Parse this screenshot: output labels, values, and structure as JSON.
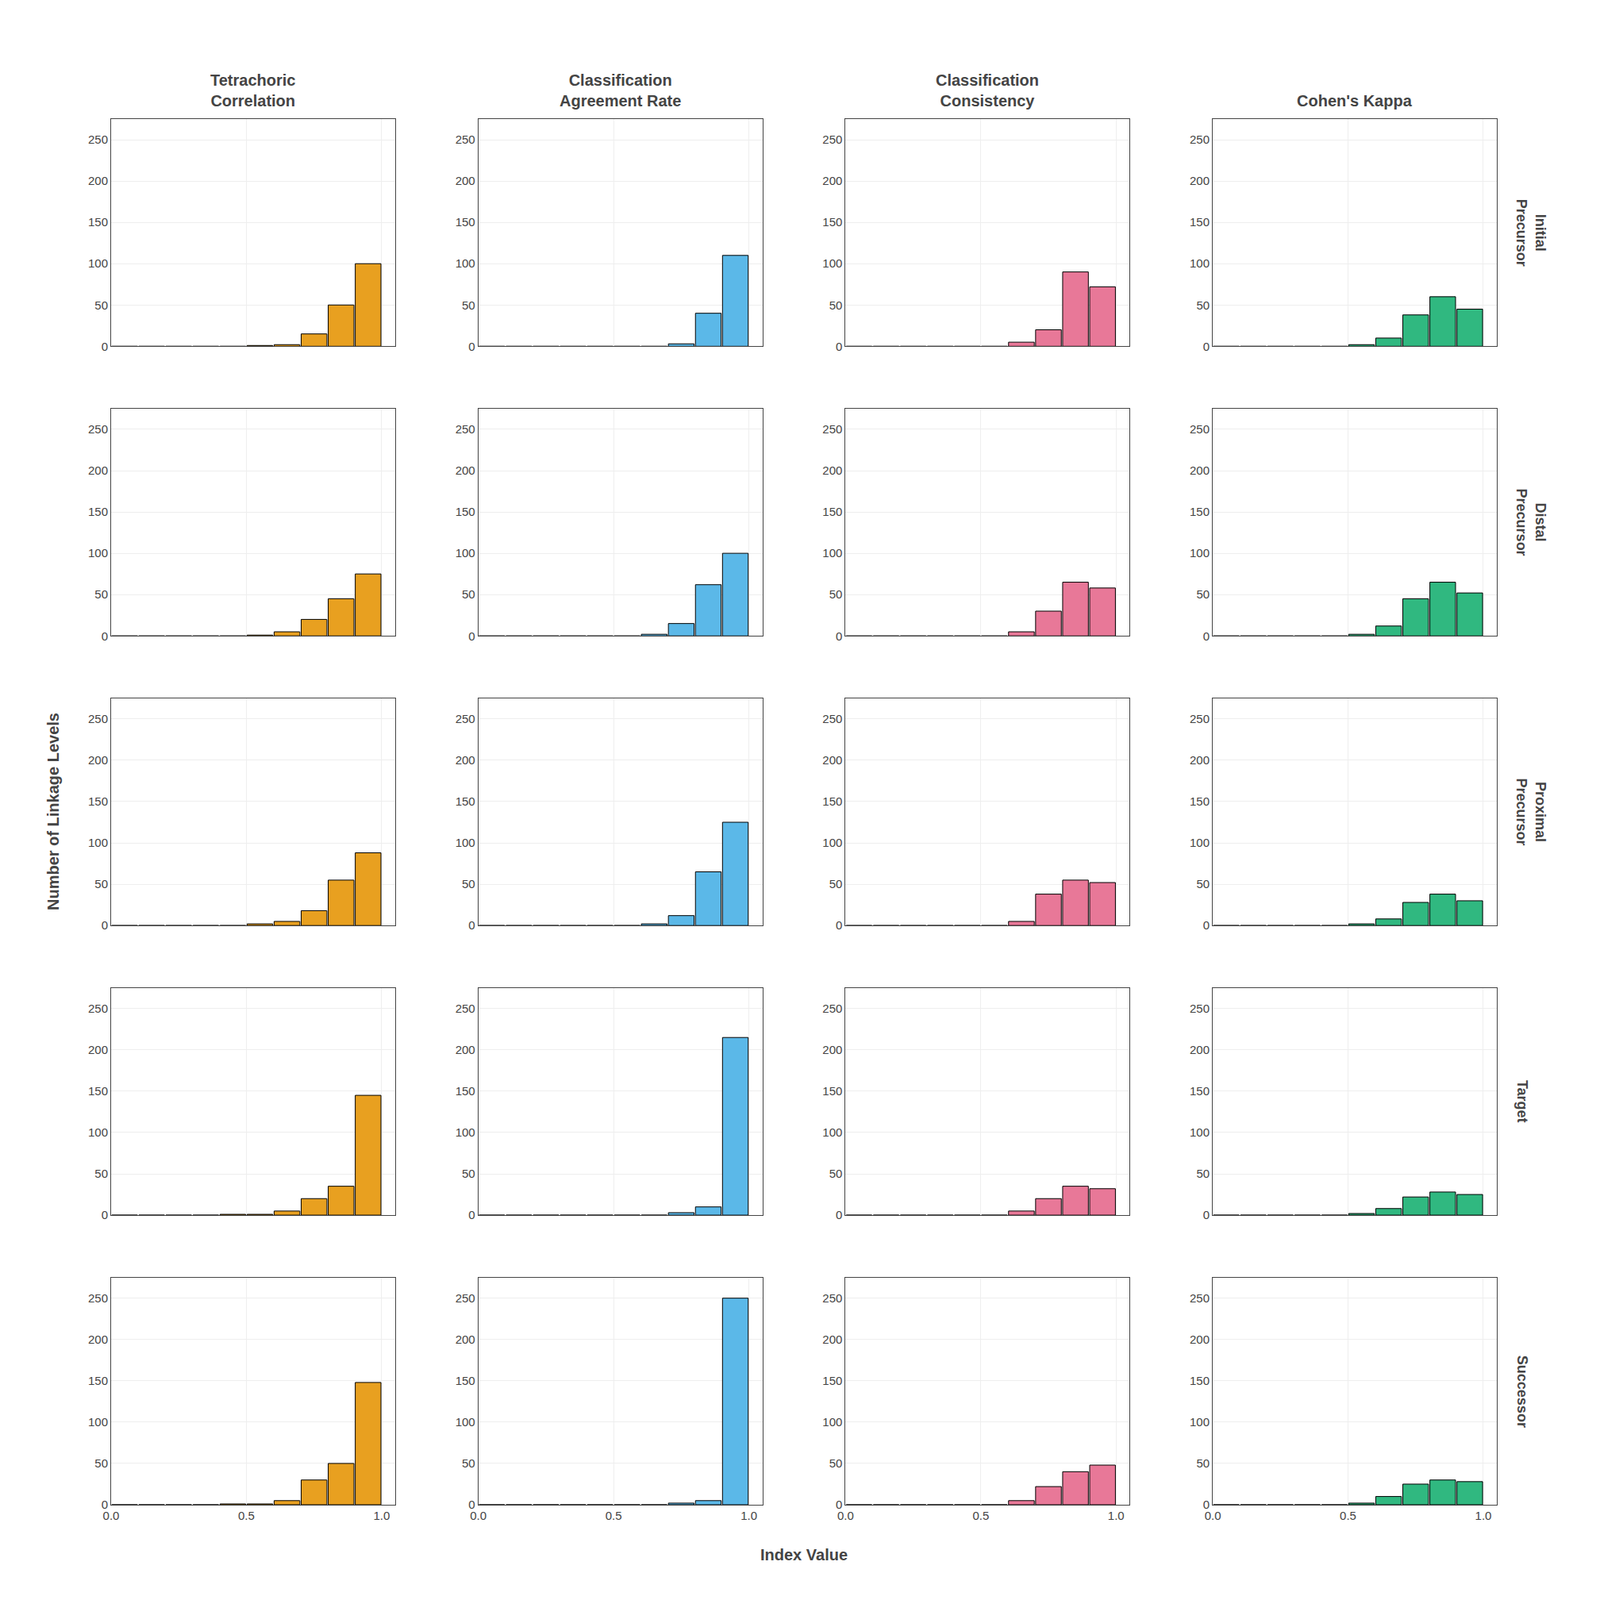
{
  "xlabel": "Index Value",
  "ylabel": "Number of Linkage Levels",
  "chart_data": [
    {
      "type": "histogram",
      "title": "Tetrachoric\nCorrelation",
      "bins": [
        0.0,
        0.1,
        0.2,
        0.3,
        0.4,
        0.5,
        0.6,
        0.7,
        0.8,
        0.9,
        1.0
      ],
      "values": [
        0,
        0,
        0,
        0,
        0,
        1,
        2,
        15,
        50,
        100
      ],
      "color": "#E8A020",
      "xlim": [
        0.0,
        1.05
      ],
      "ylim": [
        0,
        275
      ],
      "xticks": [
        {
          "value": 0.0,
          "label": "0.0"
        },
        0.5,
        {
          "value": 1.0,
          "label": "1.0"
        }
      ],
      "yticks": [
        0,
        50,
        100,
        150,
        200,
        250
      ],
      "grid": true,
      "tick_labels": "y"
    },
    {
      "type": "histogram",
      "title": "Classification\nAgreement Rate",
      "bins": [
        0.0,
        0.1,
        0.2,
        0.3,
        0.4,
        0.5,
        0.6,
        0.7,
        0.8,
        0.9,
        1.0
      ],
      "values": [
        0,
        0,
        0,
        0,
        0,
        0,
        0,
        3,
        40,
        110
      ],
      "color": "#5BB8E8",
      "xlim": [
        0.0,
        1.05
      ],
      "ylim": [
        0,
        275
      ],
      "xticks": [
        {
          "value": 0.0,
          "label": "0.0"
        },
        0.5,
        {
          "value": 1.0,
          "label": "1.0"
        }
      ],
      "yticks": [
        0,
        50,
        100,
        150,
        200,
        250
      ],
      "grid": true,
      "tick_labels": "y"
    },
    {
      "type": "histogram",
      "title": "Classification\nConsistency",
      "bins": [
        0.0,
        0.1,
        0.2,
        0.3,
        0.4,
        0.5,
        0.6,
        0.7,
        0.8,
        0.9,
        1.0
      ],
      "values": [
        0,
        0,
        0,
        0,
        0,
        0,
        5,
        20,
        90,
        72
      ],
      "color": "#E87898",
      "xlim": [
        0.0,
        1.05
      ],
      "ylim": [
        0,
        275
      ],
      "xticks": [
        {
          "value": 0.0,
          "label": "0.0"
        },
        0.5,
        {
          "value": 1.0,
          "label": "1.0"
        }
      ],
      "yticks": [
        0,
        50,
        100,
        150,
        200,
        250
      ],
      "grid": true,
      "tick_labels": "y"
    },
    {
      "type": "histogram",
      "title": "Cohen's Kappa",
      "annotations": [
        "Initial\nPrecursor"
      ],
      "bins": [
        0.0,
        0.1,
        0.2,
        0.3,
        0.4,
        0.5,
        0.6,
        0.7,
        0.8,
        0.9,
        1.0
      ],
      "values": [
        0,
        0,
        0,
        0,
        0,
        2,
        10,
        38,
        60,
        45
      ],
      "color": "#30B880",
      "xlim": [
        0.0,
        1.05
      ],
      "ylim": [
        0,
        275
      ],
      "xticks": [
        {
          "value": 0.0,
          "label": "0.0"
        },
        0.5,
        {
          "value": 1.0,
          "label": "1.0"
        }
      ],
      "yticks": [
        0,
        50,
        100,
        150,
        200,
        250
      ],
      "grid": true,
      "tick_labels": "y"
    },
    {
      "type": "histogram",
      "bins": [
        0.0,
        0.1,
        0.2,
        0.3,
        0.4,
        0.5,
        0.6,
        0.7,
        0.8,
        0.9,
        1.0
      ],
      "values": [
        0,
        0,
        0,
        0,
        0,
        1,
        5,
        20,
        45,
        75
      ],
      "color": "#E8A020",
      "xlim": [
        0.0,
        1.05
      ],
      "ylim": [
        0,
        275
      ],
      "xticks": [
        {
          "value": 0.0,
          "label": "0.0"
        },
        0.5,
        {
          "value": 1.0,
          "label": "1.0"
        }
      ],
      "yticks": [
        0,
        50,
        100,
        150,
        200,
        250
      ],
      "grid": true,
      "tick_labels": "y"
    },
    {
      "type": "histogram",
      "bins": [
        0.0,
        0.1,
        0.2,
        0.3,
        0.4,
        0.5,
        0.6,
        0.7,
        0.8,
        0.9,
        1.0
      ],
      "values": [
        0,
        0,
        0,
        0,
        0,
        0,
        2,
        15,
        62,
        100
      ],
      "color": "#5BB8E8",
      "xlim": [
        0.0,
        1.05
      ],
      "ylim": [
        0,
        275
      ],
      "xticks": [
        {
          "value": 0.0,
          "label": "0.0"
        },
        0.5,
        {
          "value": 1.0,
          "label": "1.0"
        }
      ],
      "yticks": [
        0,
        50,
        100,
        150,
        200,
        250
      ],
      "grid": true,
      "tick_labels": "y"
    },
    {
      "type": "histogram",
      "bins": [
        0.0,
        0.1,
        0.2,
        0.3,
        0.4,
        0.5,
        0.6,
        0.7,
        0.8,
        0.9,
        1.0
      ],
      "values": [
        0,
        0,
        0,
        0,
        0,
        0,
        5,
        30,
        65,
        58
      ],
      "color": "#E87898",
      "xlim": [
        0.0,
        1.05
      ],
      "ylim": [
        0,
        275
      ],
      "xticks": [
        {
          "value": 0.0,
          "label": "0.0"
        },
        0.5,
        {
          "value": 1.0,
          "label": "1.0"
        }
      ],
      "yticks": [
        0,
        50,
        100,
        150,
        200,
        250
      ],
      "grid": true,
      "tick_labels": "y"
    },
    {
      "type": "histogram",
      "annotations": [
        "Distal\nPrecursor"
      ],
      "bins": [
        0.0,
        0.1,
        0.2,
        0.3,
        0.4,
        0.5,
        0.6,
        0.7,
        0.8,
        0.9,
        1.0
      ],
      "values": [
        0,
        0,
        0,
        0,
        0,
        2,
        12,
        45,
        65,
        52
      ],
      "color": "#30B880",
      "xlim": [
        0.0,
        1.05
      ],
      "ylim": [
        0,
        275
      ],
      "xticks": [
        {
          "value": 0.0,
          "label": "0.0"
        },
        0.5,
        {
          "value": 1.0,
          "label": "1.0"
        }
      ],
      "yticks": [
        0,
        50,
        100,
        150,
        200,
        250
      ],
      "grid": true,
      "tick_labels": "y"
    },
    {
      "type": "histogram",
      "bins": [
        0.0,
        0.1,
        0.2,
        0.3,
        0.4,
        0.5,
        0.6,
        0.7,
        0.8,
        0.9,
        1.0
      ],
      "values": [
        0,
        0,
        0,
        0,
        0,
        2,
        5,
        18,
        55,
        88
      ],
      "color": "#E8A020",
      "xlim": [
        0.0,
        1.05
      ],
      "ylim": [
        0,
        275
      ],
      "xticks": [
        {
          "value": 0.0,
          "label": "0.0"
        },
        0.5,
        {
          "value": 1.0,
          "label": "1.0"
        }
      ],
      "yticks": [
        0,
        50,
        100,
        150,
        200,
        250
      ],
      "grid": true,
      "tick_labels": "y"
    },
    {
      "type": "histogram",
      "bins": [
        0.0,
        0.1,
        0.2,
        0.3,
        0.4,
        0.5,
        0.6,
        0.7,
        0.8,
        0.9,
        1.0
      ],
      "values": [
        0,
        0,
        0,
        0,
        0,
        0,
        2,
        12,
        65,
        125
      ],
      "color": "#5BB8E8",
      "xlim": [
        0.0,
        1.05
      ],
      "ylim": [
        0,
        275
      ],
      "xticks": [
        {
          "value": 0.0,
          "label": "0.0"
        },
        0.5,
        {
          "value": 1.0,
          "label": "1.0"
        }
      ],
      "yticks": [
        0,
        50,
        100,
        150,
        200,
        250
      ],
      "grid": true,
      "tick_labels": "y"
    },
    {
      "type": "histogram",
      "bins": [
        0.0,
        0.1,
        0.2,
        0.3,
        0.4,
        0.5,
        0.6,
        0.7,
        0.8,
        0.9,
        1.0
      ],
      "values": [
        0,
        0,
        0,
        0,
        0,
        0,
        5,
        38,
        55,
        52
      ],
      "color": "#E87898",
      "xlim": [
        0.0,
        1.05
      ],
      "ylim": [
        0,
        275
      ],
      "xticks": [
        {
          "value": 0.0,
          "label": "0.0"
        },
        0.5,
        {
          "value": 1.0,
          "label": "1.0"
        }
      ],
      "yticks": [
        0,
        50,
        100,
        150,
        200,
        250
      ],
      "grid": true,
      "tick_labels": "y"
    },
    {
      "type": "histogram",
      "annotations": [
        "Proximal\nPrecursor"
      ],
      "bins": [
        0.0,
        0.1,
        0.2,
        0.3,
        0.4,
        0.5,
        0.6,
        0.7,
        0.8,
        0.9,
        1.0
      ],
      "values": [
        0,
        0,
        0,
        0,
        0,
        2,
        8,
        28,
        38,
        30
      ],
      "color": "#30B880",
      "xlim": [
        0.0,
        1.05
      ],
      "ylim": [
        0,
        275
      ],
      "xticks": [
        {
          "value": 0.0,
          "label": "0.0"
        },
        0.5,
        {
          "value": 1.0,
          "label": "1.0"
        }
      ],
      "yticks": [
        0,
        50,
        100,
        150,
        200,
        250
      ],
      "grid": true,
      "tick_labels": "y"
    },
    {
      "type": "histogram",
      "bins": [
        0.0,
        0.1,
        0.2,
        0.3,
        0.4,
        0.5,
        0.6,
        0.7,
        0.8,
        0.9,
        1.0
      ],
      "values": [
        0,
        0,
        0,
        0,
        1,
        1,
        5,
        20,
        35,
        145
      ],
      "color": "#E8A020",
      "xlim": [
        0.0,
        1.05
      ],
      "ylim": [
        0,
        275
      ],
      "xticks": [
        {
          "value": 0.0,
          "label": "0.0"
        },
        0.5,
        {
          "value": 1.0,
          "label": "1.0"
        }
      ],
      "yticks": [
        0,
        50,
        100,
        150,
        200,
        250
      ],
      "grid": true,
      "tick_labels": "y"
    },
    {
      "type": "histogram",
      "bins": [
        0.0,
        0.1,
        0.2,
        0.3,
        0.4,
        0.5,
        0.6,
        0.7,
        0.8,
        0.9,
        1.0
      ],
      "values": [
        0,
        0,
        0,
        0,
        0,
        0,
        0,
        3,
        10,
        215
      ],
      "color": "#5BB8E8",
      "xlim": [
        0.0,
        1.05
      ],
      "ylim": [
        0,
        275
      ],
      "xticks": [
        {
          "value": 0.0,
          "label": "0.0"
        },
        0.5,
        {
          "value": 1.0,
          "label": "1.0"
        }
      ],
      "yticks": [
        0,
        50,
        100,
        150,
        200,
        250
      ],
      "grid": true,
      "tick_labels": "y"
    },
    {
      "type": "histogram",
      "bins": [
        0.0,
        0.1,
        0.2,
        0.3,
        0.4,
        0.5,
        0.6,
        0.7,
        0.8,
        0.9,
        1.0
      ],
      "values": [
        0,
        0,
        0,
        0,
        0,
        0,
        5,
        20,
        35,
        32
      ],
      "color": "#E87898",
      "xlim": [
        0.0,
        1.05
      ],
      "ylim": [
        0,
        275
      ],
      "xticks": [
        {
          "value": 0.0,
          "label": "0.0"
        },
        0.5,
        {
          "value": 1.0,
          "label": "1.0"
        }
      ],
      "yticks": [
        0,
        50,
        100,
        150,
        200,
        250
      ],
      "grid": true,
      "tick_labels": "y"
    },
    {
      "type": "histogram",
      "annotations": [
        "Target"
      ],
      "bins": [
        0.0,
        0.1,
        0.2,
        0.3,
        0.4,
        0.5,
        0.6,
        0.7,
        0.8,
        0.9,
        1.0
      ],
      "values": [
        0,
        0,
        0,
        0,
        0,
        2,
        8,
        22,
        28,
        25
      ],
      "color": "#30B880",
      "xlim": [
        0.0,
        1.05
      ],
      "ylim": [
        0,
        275
      ],
      "xticks": [
        {
          "value": 0.0,
          "label": "0.0"
        },
        0.5,
        {
          "value": 1.0,
          "label": "1.0"
        }
      ],
      "yticks": [
        0,
        50,
        100,
        150,
        200,
        250
      ],
      "grid": true,
      "tick_labels": "y"
    },
    {
      "type": "histogram",
      "bins": [
        0.0,
        0.1,
        0.2,
        0.3,
        0.4,
        0.5,
        0.6,
        0.7,
        0.8,
        0.9,
        1.0
      ],
      "values": [
        0,
        0,
        0,
        0,
        1,
        1,
        5,
        30,
        50,
        148
      ],
      "color": "#E8A020",
      "xlim": [
        0.0,
        1.05
      ],
      "ylim": [
        0,
        275
      ],
      "xticks": [
        {
          "value": 0.0,
          "label": "0.0"
        },
        0.5,
        {
          "value": 1.0,
          "label": "1.0"
        }
      ],
      "yticks": [
        0,
        50,
        100,
        150,
        200,
        250
      ],
      "grid": true
    },
    {
      "type": "histogram",
      "bins": [
        0.0,
        0.1,
        0.2,
        0.3,
        0.4,
        0.5,
        0.6,
        0.7,
        0.8,
        0.9,
        1.0
      ],
      "values": [
        0,
        0,
        0,
        0,
        0,
        0,
        0,
        2,
        5,
        250
      ],
      "color": "#5BB8E8",
      "xlim": [
        0.0,
        1.05
      ],
      "ylim": [
        0,
        275
      ],
      "xticks": [
        {
          "value": 0.0,
          "label": "0.0"
        },
        0.5,
        {
          "value": 1.0,
          "label": "1.0"
        }
      ],
      "yticks": [
        0,
        50,
        100,
        150,
        200,
        250
      ],
      "grid": true
    },
    {
      "type": "histogram",
      "bins": [
        0.0,
        0.1,
        0.2,
        0.3,
        0.4,
        0.5,
        0.6,
        0.7,
        0.8,
        0.9,
        1.0
      ],
      "values": [
        0,
        0,
        0,
        0,
        0,
        0,
        5,
        22,
        40,
        48
      ],
      "color": "#E87898",
      "xlim": [
        0.0,
        1.05
      ],
      "ylim": [
        0,
        275
      ],
      "xticks": [
        {
          "value": 0.0,
          "label": "0.0"
        },
        0.5,
        {
          "value": 1.0,
          "label": "1.0"
        }
      ],
      "yticks": [
        0,
        50,
        100,
        150,
        200,
        250
      ],
      "grid": true
    },
    {
      "type": "histogram",
      "annotations": [
        "Successor"
      ],
      "bins": [
        0.0,
        0.1,
        0.2,
        0.3,
        0.4,
        0.5,
        0.6,
        0.7,
        0.8,
        0.9,
        1.0
      ],
      "values": [
        0,
        0,
        0,
        0,
        0,
        2,
        10,
        25,
        30,
        28
      ],
      "color": "#30B880",
      "xlim": [
        0.0,
        1.05
      ],
      "ylim": [
        0,
        275
      ],
      "xticks": [
        {
          "value": 0.0,
          "label": "0.0"
        },
        0.5,
        {
          "value": 1.0,
          "label": "1.0"
        }
      ],
      "yticks": [
        0,
        50,
        100,
        150,
        200,
        250
      ],
      "grid": true
    }
  ]
}
